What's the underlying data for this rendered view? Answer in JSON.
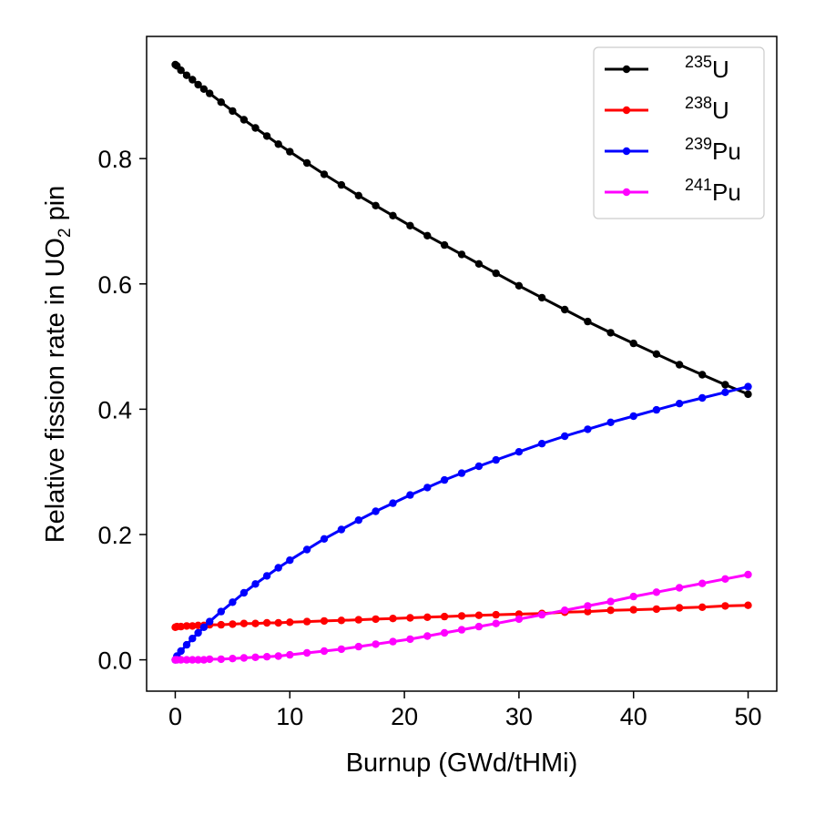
{
  "chart_data": {
    "type": "line",
    "title": "",
    "xlabel": "Burnup (GWd/tHMi)",
    "ylabel": {
      "prefix": "Relative fission rate in UO",
      "subscript": "2",
      "suffix": " pin"
    },
    "xlim": [
      -2.5,
      52.5
    ],
    "ylim": [
      -0.05,
      0.995
    ],
    "xticks": [
      0,
      10,
      20,
      30,
      40,
      50
    ],
    "yticks": [
      0.0,
      0.2,
      0.4,
      0.6,
      0.8
    ],
    "xtick_labels": [
      "0",
      "10",
      "20",
      "30",
      "40",
      "50"
    ],
    "ytick_labels": [
      "0.0",
      "0.2",
      "0.4",
      "0.6",
      "0.8"
    ],
    "grid": false,
    "legend_position": "top-right",
    "x": [
      0,
      0.15,
      0.5,
      1,
      1.5,
      2,
      2.5,
      3,
      4,
      5,
      6,
      7,
      8,
      9,
      10,
      11.5,
      13,
      14.5,
      16,
      17.5,
      19,
      20.5,
      22,
      23.5,
      25,
      26.5,
      28,
      30,
      32,
      34,
      36,
      38,
      40,
      42,
      44,
      46,
      48,
      50
    ],
    "series": [
      {
        "name": "235U",
        "label_sup": "235",
        "label_base": "U",
        "color": "#000000",
        "values": [
          0.95,
          0.948,
          0.941,
          0.933,
          0.926,
          0.918,
          0.911,
          0.904,
          0.89,
          0.876,
          0.862,
          0.849,
          0.836,
          0.823,
          0.811,
          0.793,
          0.775,
          0.758,
          0.741,
          0.725,
          0.709,
          0.693,
          0.677,
          0.662,
          0.647,
          0.632,
          0.617,
          0.597,
          0.578,
          0.559,
          0.54,
          0.522,
          0.505,
          0.488,
          0.471,
          0.455,
          0.439,
          0.424
        ]
      },
      {
        "name": "238U",
        "label_sup": "238",
        "label_base": "U",
        "color": "#ff0000",
        "values": [
          0.052,
          0.053,
          0.053,
          0.054,
          0.054,
          0.055,
          0.055,
          0.056,
          0.056,
          0.057,
          0.058,
          0.058,
          0.059,
          0.059,
          0.06,
          0.061,
          0.062,
          0.063,
          0.064,
          0.065,
          0.066,
          0.067,
          0.068,
          0.069,
          0.07,
          0.071,
          0.072,
          0.073,
          0.074,
          0.076,
          0.077,
          0.079,
          0.08,
          0.081,
          0.083,
          0.084,
          0.086,
          0.087
        ]
      },
      {
        "name": "239Pu",
        "label_sup": "239",
        "label_base": "Pu",
        "color": "#0000ff",
        "values": [
          0.0,
          0.006,
          0.014,
          0.024,
          0.034,
          0.043,
          0.052,
          0.061,
          0.077,
          0.092,
          0.107,
          0.121,
          0.134,
          0.147,
          0.159,
          0.176,
          0.193,
          0.208,
          0.223,
          0.237,
          0.25,
          0.263,
          0.275,
          0.287,
          0.298,
          0.309,
          0.319,
          0.332,
          0.345,
          0.357,
          0.368,
          0.379,
          0.389,
          0.399,
          0.409,
          0.418,
          0.427,
          0.436
        ]
      },
      {
        "name": "241Pu",
        "label_sup": "241",
        "label_base": "Pu",
        "color": "#ff00ff",
        "values": [
          0.0,
          0.0,
          0.0,
          0.0,
          0.0,
          0.0,
          0.0,
          0.001,
          0.001,
          0.002,
          0.003,
          0.004,
          0.005,
          0.006,
          0.008,
          0.011,
          0.014,
          0.017,
          0.021,
          0.025,
          0.029,
          0.033,
          0.038,
          0.043,
          0.048,
          0.053,
          0.058,
          0.065,
          0.072,
          0.079,
          0.086,
          0.093,
          0.101,
          0.108,
          0.115,
          0.122,
          0.129,
          0.136
        ]
      }
    ]
  }
}
